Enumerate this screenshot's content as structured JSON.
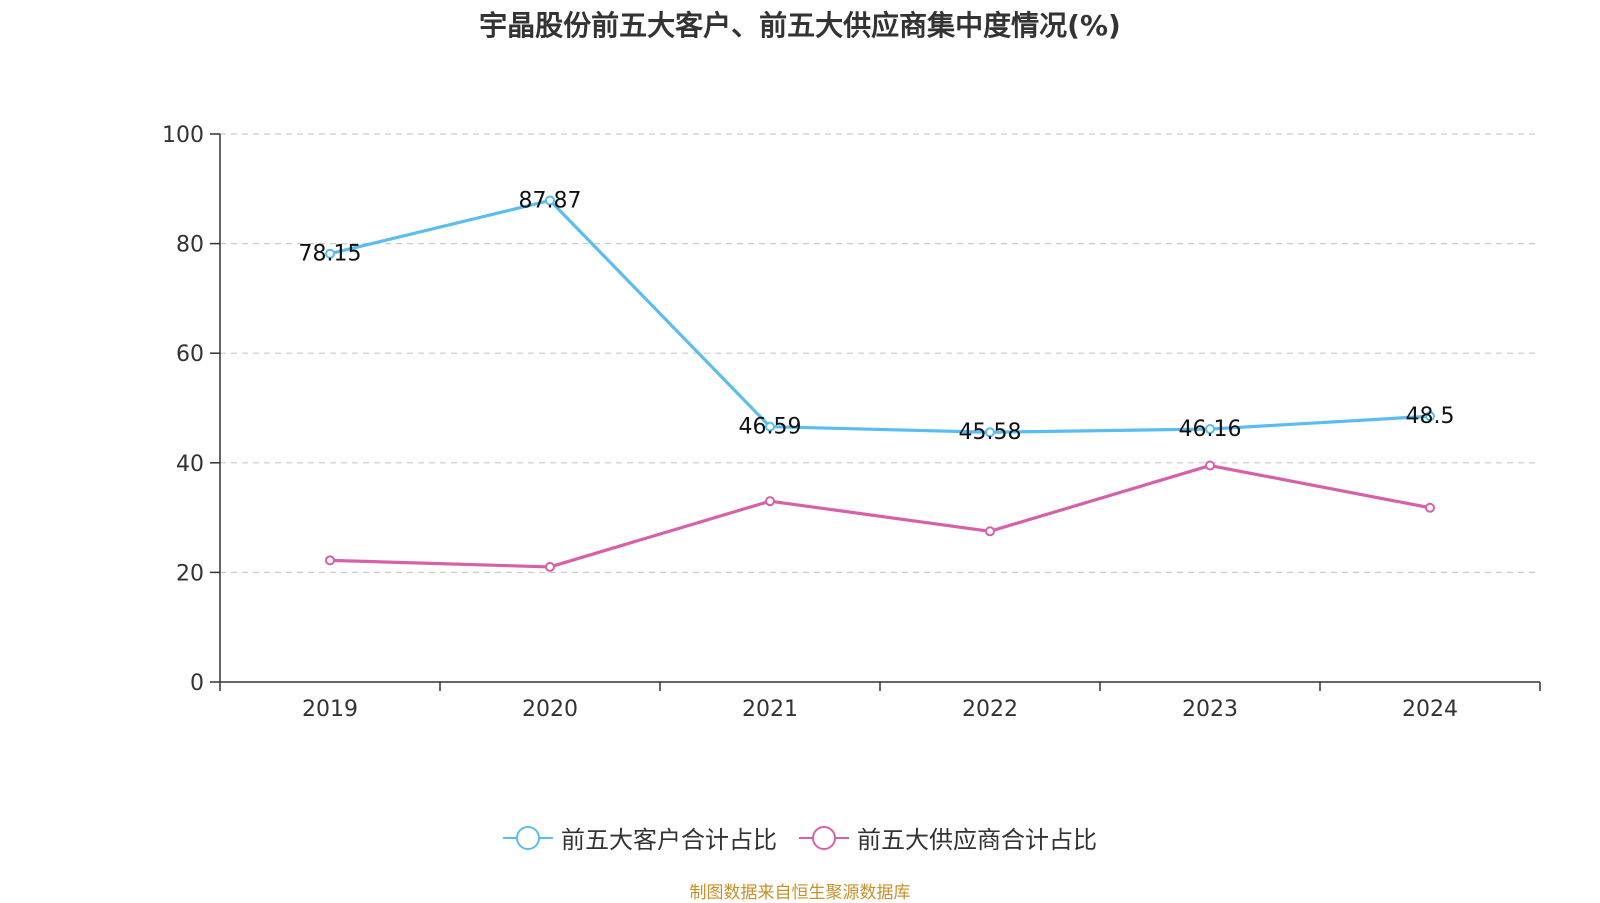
{
  "chart_data": {
    "type": "line",
    "title": "宇晶股份前五大客户、前五大供应商集中度情况(%)",
    "categories": [
      "2019",
      "2020",
      "2021",
      "2022",
      "2023",
      "2024"
    ],
    "ylim": [
      0,
      100
    ],
    "yticks": [
      "0",
      "20",
      "40",
      "60",
      "80",
      "100"
    ],
    "grid": true,
    "legend_position": "bottom",
    "series": [
      {
        "name": "前五大客户合计占比",
        "values": [
          78.15,
          87.87,
          46.59,
          45.58,
          46.16,
          48.5
        ],
        "labels": [
          "78.15",
          "87.87",
          "46.59",
          "45.58",
          "46.16",
          "48.5"
        ],
        "color": "#5bbcef",
        "show_labels": true
      },
      {
        "name": "前五大供应商合计占比",
        "values": [
          22.2,
          21.0,
          33.0,
          27.5,
          39.5,
          31.8
        ],
        "color": "#d661a9",
        "show_labels": false
      }
    ]
  },
  "footer": {
    "source": "制图数据来自恒生聚源数据库"
  }
}
